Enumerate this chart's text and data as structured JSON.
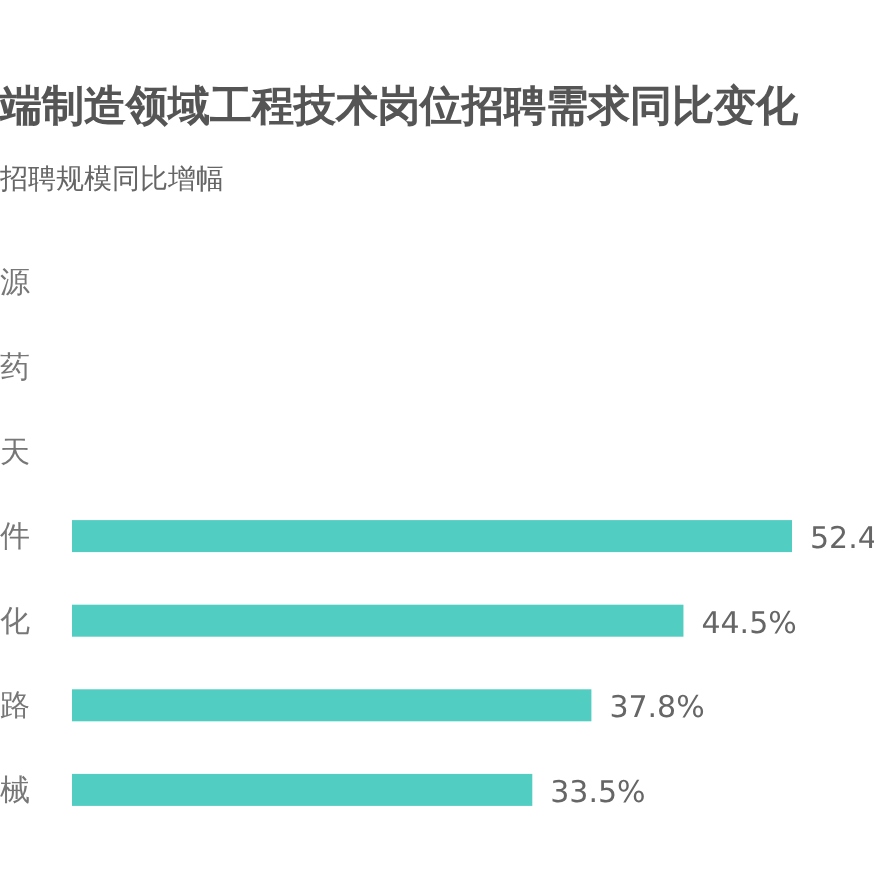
{
  "chart_data": {
    "type": "bar",
    "orientation": "horizontal",
    "title": "端制造领域工程技术岗位招聘需求同比变化",
    "subtitle": "招聘规模同比增幅",
    "categories": [
      "源",
      "药",
      "天",
      "件",
      "化",
      "路",
      "械"
    ],
    "values": [
      null,
      null,
      null,
      52.4,
      44.5,
      37.8,
      33.5
    ],
    "value_labels": [
      null,
      null,
      null,
      "52.4",
      "44.5%",
      "37.8%",
      "33.5%"
    ],
    "color": "#52cdc1"
  }
}
